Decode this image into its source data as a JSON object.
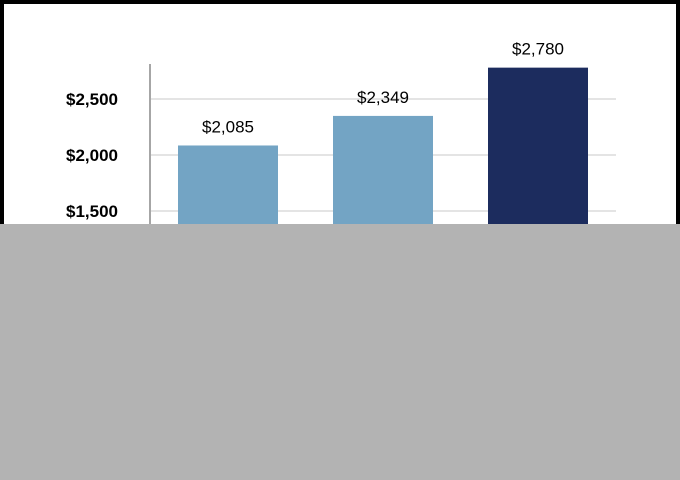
{
  "chart_data": {
    "type": "bar",
    "categories": [
      "",
      "",
      ""
    ],
    "values": [
      2085,
      2349,
      2780
    ],
    "value_labels": [
      "$2,085",
      "$2,349",
      "$2,780"
    ],
    "bar_colors": [
      "#73a4c4",
      "#73a4c4",
      "#1c2c5e"
    ],
    "yticks": [
      {
        "value": 1500,
        "label": "$1,500"
      },
      {
        "value": 2000,
        "label": "$2,000"
      },
      {
        "value": 2500,
        "label": "$2,500"
      }
    ],
    "ylim": [
      500,
      2900
    ],
    "grid": true,
    "grid_color": "#e4e4e4",
    "axis_color": "#a6a6a6",
    "occluder_color": "#b3b3b3",
    "title": "",
    "xlabel": "",
    "ylabel": ""
  }
}
